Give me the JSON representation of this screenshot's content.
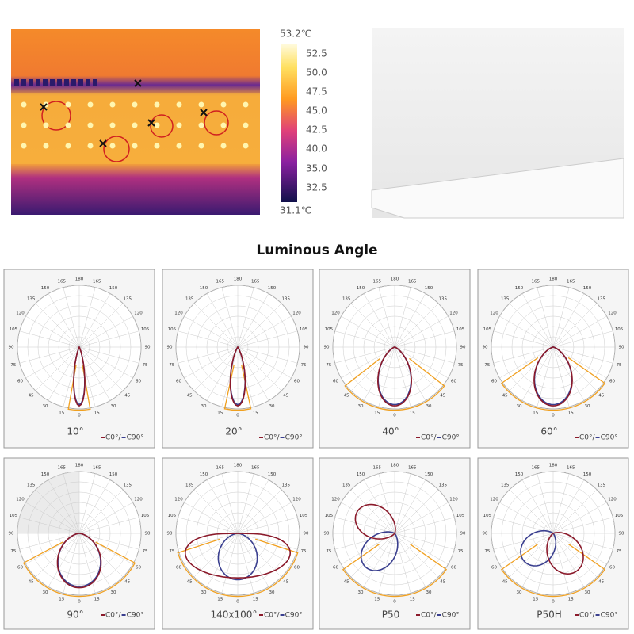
{
  "thermal": {
    "max_label": "53.2℃",
    "min_label": "31.1℃",
    "scale_labels": [
      "52.5",
      "50.0",
      "47.5",
      "45.0",
      "42.5",
      "40.0",
      "35.0",
      "32.5"
    ]
  },
  "title": "Luminous Angle",
  "polar_labels": [
    180,
    165,
    150,
    135,
    120,
    105,
    90,
    75,
    60,
    45,
    30,
    15,
    0
  ],
  "legend": [
    {
      "name": "C0°",
      "color": "#8b1a2b"
    },
    {
      "name": "C90°",
      "color": "#3a3f8f"
    }
  ],
  "legend_separator": "/",
  "panels": [
    {
      "label": "10°"
    },
    {
      "label": "20°"
    },
    {
      "label": "40°"
    },
    {
      "label": "60°"
    },
    {
      "label": "90°"
    },
    {
      "label": "140x100°"
    },
    {
      "label": "P50"
    },
    {
      "label": "P50H"
    }
  ]
}
